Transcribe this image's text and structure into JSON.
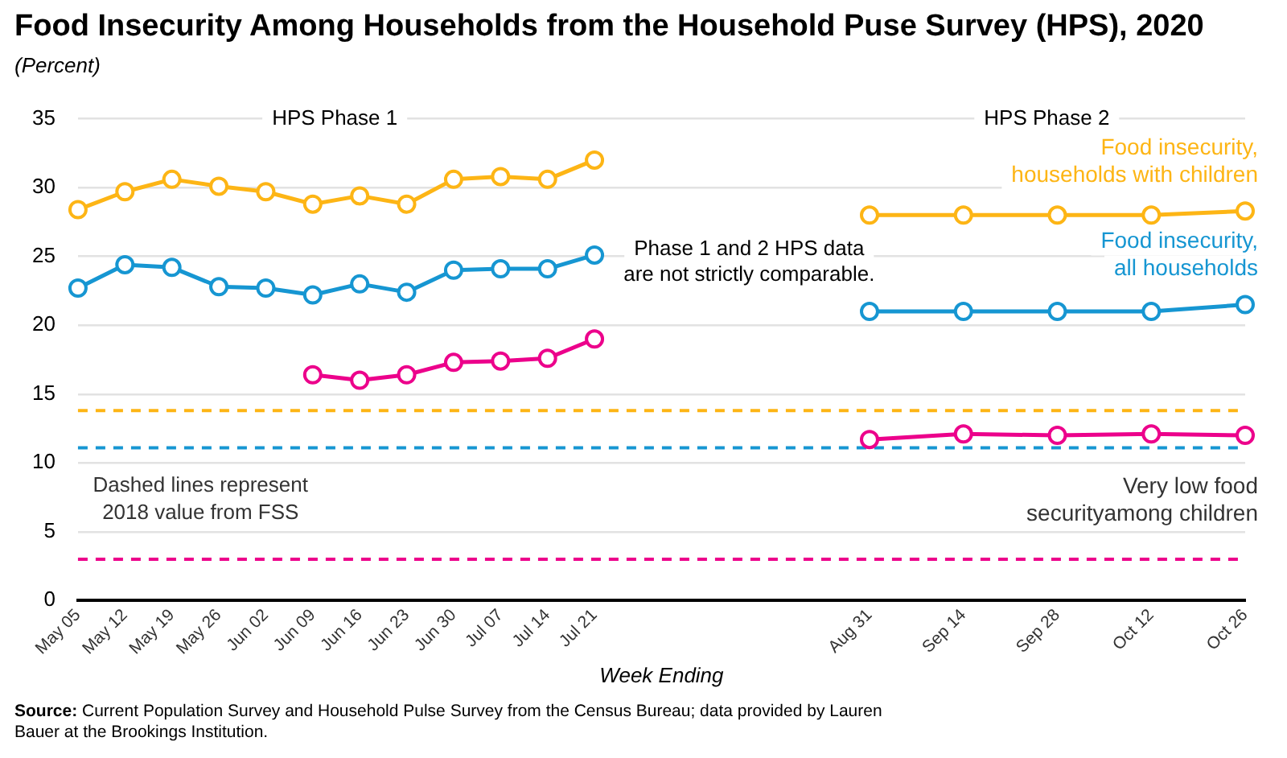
{
  "chart_data": {
    "type": "line",
    "title": "Food Insecurity Among Households from the Household Puse Survey (HPS), 2020",
    "subtitle": "(Percent)",
    "xlabel": "Week Ending",
    "xlim": [
      "--05-05",
      "--10-26"
    ],
    "xticks": [
      {
        "value": "--05-05",
        "label": "May 05"
      },
      {
        "value": "--05-12",
        "label": "May 12"
      },
      {
        "value": "--05-19",
        "label": "May 19"
      },
      {
        "value": "--05-26",
        "label": "May 26"
      },
      {
        "value": "--06-02",
        "label": "Jun 02"
      },
      {
        "value": "--06-09",
        "label": "Jun 09"
      },
      {
        "value": "--06-16",
        "label": "Jun 16"
      },
      {
        "value": "--06-23",
        "label": "Jun 23"
      },
      {
        "value": "--06-30",
        "label": "Jun 30"
      },
      {
        "value": "--07-07",
        "label": "Jul 07"
      },
      {
        "value": "--07-14",
        "label": "Jul 14"
      },
      {
        "value": "--07-21",
        "label": "Jul 21"
      },
      {
        "value": "--08-31",
        "label": "Aug 31"
      },
      {
        "value": "--09-14",
        "label": "Sep 14"
      },
      {
        "value": "--09-28",
        "label": "Sep 28"
      },
      {
        "value": "--10-12",
        "label": "Oct 12"
      },
      {
        "value": "--10-26",
        "label": "Oct 26"
      }
    ],
    "x": [
      "--05-05",
      "--05-12",
      "--05-19",
      "--05-26",
      "--06-02",
      "--06-09",
      "--06-16",
      "--06-23",
      "--06-30",
      "--07-07",
      "--07-14",
      "--07-21",
      "--08-31",
      "--09-14",
      "--09-28",
      "--10-12",
      "--10-26"
    ],
    "ylim": [
      0,
      35
    ],
    "yticks": [
      0,
      5,
      10,
      15,
      20,
      25,
      30,
      35
    ],
    "grid": "y",
    "legend": false,
    "marker": "circle",
    "line_style": "solid",
    "series": [
      {
        "name": "Food insecurity, households with children",
        "color": "#fdb515",
        "values": [
          28.4,
          29.7,
          30.6,
          30.1,
          29.7,
          28.8,
          29.4,
          28.8,
          30.6,
          30.8,
          30.6,
          32.0,
          28.0,
          28.0,
          28.0,
          28.0,
          28.3
        ]
      },
      {
        "name": "Food insecurity, all households",
        "color": "#1696d2",
        "values": [
          22.7,
          24.4,
          24.2,
          22.8,
          22.7,
          22.2,
          23.0,
          22.4,
          24.0,
          24.1,
          24.1,
          25.1,
          21.0,
          21.0,
          21.0,
          21.0,
          21.5
        ]
      },
      {
        "name": "Very low food securityamong children",
        "color": "#ec008b",
        "x": [
          "--06-09",
          "--06-16",
          "--06-23",
          "--06-30",
          "--07-07",
          "--07-14",
          "--07-21",
          "--08-31",
          "--09-14",
          "--09-28",
          "--10-12",
          "--10-26"
        ],
        "values": [
          16.4,
          16.0,
          16.4,
          17.3,
          17.4,
          17.6,
          19.0,
          11.7,
          12.1,
          12.0,
          12.1,
          12.0
        ]
      }
    ],
    "ref_lines": [
      {
        "axis": "y",
        "value": 13.8,
        "color": "#fdb515",
        "line_style": "dashed"
      },
      {
        "axis": "y",
        "value": 11.1,
        "color": "#1696d2",
        "line_style": "dashed"
      },
      {
        "axis": "y",
        "value": 3.0,
        "color": "#ec008b",
        "line_style": "dashed"
      }
    ],
    "annotations": [
      "HPS Phase 1",
      "HPS Phase 2",
      "Phase 1 and 2 HPS data are not strictly comparable.",
      "Dashed lines represent 2018 value from FSS",
      "Source: Current Population Survey and Household Pulse Survey from the Census Bureau; data provided by Lauren Bauer at the Brookings Institution."
    ]
  }
}
